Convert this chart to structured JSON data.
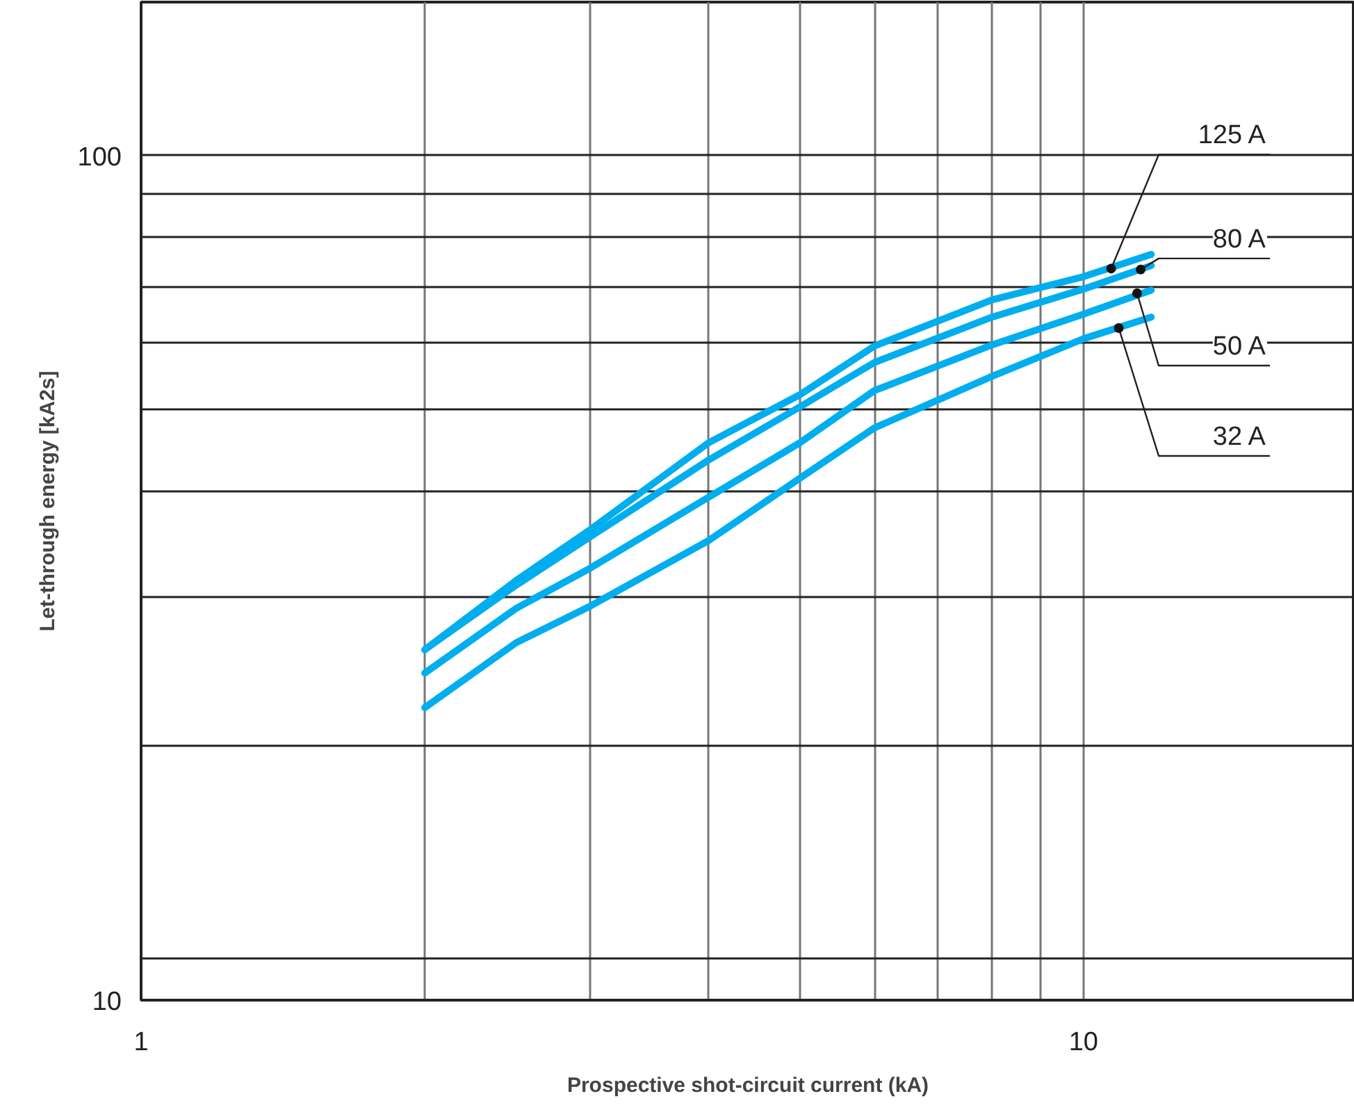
{
  "chart_data": {
    "type": "line",
    "xlabel": "Prospective shot-circuit current (kA)",
    "ylabel": "Let-through energy [kA2s]",
    "x": [
      2,
      2.5,
      3,
      4,
      5,
      6,
      8,
      10,
      11.8
    ],
    "series": [
      {
        "color": "#00aeef",
        "values": [
          26.0,
          31.4,
          36.1,
          45.7,
          52.1,
          59.5,
          67.5,
          71.9,
          76.4
        ]
      },
      {
        "color": "#00aeef",
        "values": [
          26.0,
          31.0,
          35.4,
          43.6,
          50.4,
          56.9,
          64.4,
          69.5,
          74.1
        ]
      },
      {
        "color": "#00aeef",
        "values": [
          24.4,
          29.1,
          32.5,
          39.4,
          45.7,
          52.7,
          59.7,
          64.9,
          69.3
        ]
      },
      {
        "color": "#00aeef",
        "values": [
          22.2,
          26.5,
          29.3,
          35.0,
          41.5,
          47.6,
          54.8,
          60.7,
          64.4
        ]
      }
    ],
    "annotations": [
      {
        "text": "125 A",
        "x": 10.7,
        "y": 73.5
      },
      {
        "text": "80 A",
        "x": 11.5,
        "y": 73.3
      },
      {
        "text": "50 A",
        "x": 11.4,
        "y": 68.7
      },
      {
        "text": "32 A",
        "x": 10.9,
        "y": 62.5
      }
    ],
    "log": "xy",
    "grid": true,
    "line_style": "solid",
    "xlim": [
      1,
      19.4
    ],
    "ylim": [
      10,
      152
    ],
    "xticks": [
      1,
      {
        "value": 2,
        "label": null
      },
      {
        "value": 3,
        "label": null
      },
      {
        "value": 4,
        "label": null
      },
      {
        "value": 5,
        "label": null
      },
      {
        "value": 6,
        "label": null
      },
      {
        "value": 7,
        "label": null
      },
      {
        "value": 8,
        "label": null
      },
      {
        "value": 9,
        "label": null
      },
      10
    ],
    "yticks": [
      10,
      {
        "value": 11.2,
        "label": null
      },
      {
        "value": 20,
        "label": null
      },
      {
        "value": 30,
        "label": null
      },
      {
        "value": 40,
        "label": null
      },
      {
        "value": 50,
        "label": null
      },
      {
        "value": 60,
        "label": null
      },
      {
        "value": 70,
        "label": null
      },
      {
        "value": 80,
        "label": null
      },
      {
        "value": 90,
        "label": null
      },
      100
    ]
  }
}
